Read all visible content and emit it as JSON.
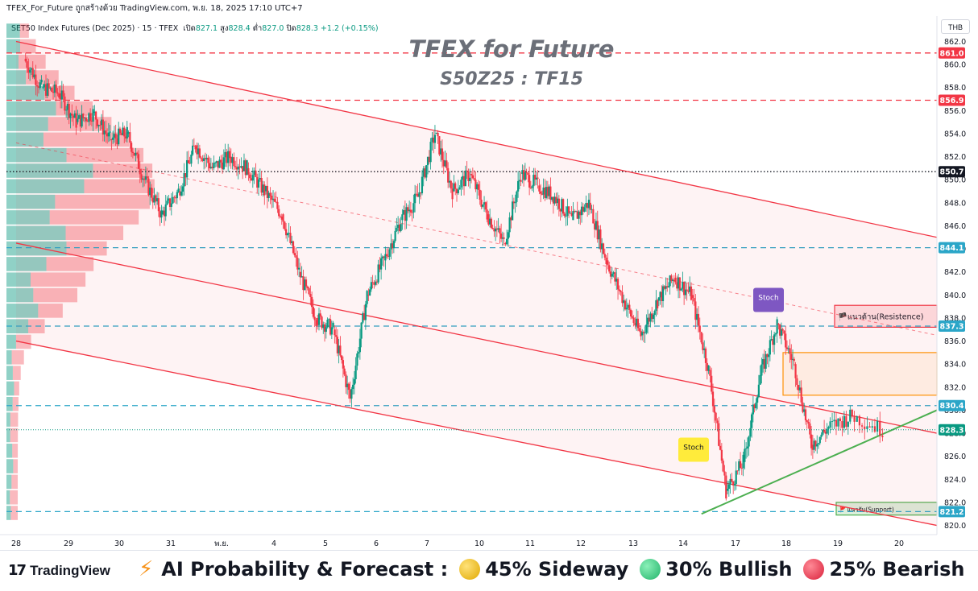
{
  "header": {
    "top_text": "TFEX_For_Future ถูกสร้างด้วย TradingView.com, พ.ย. 18, 2025 17:10 UTC+7",
    "symbol": "SET50 Index Futures (Dec 2025) · 15 · TFEX",
    "open_label": "เปิด",
    "open": "827.1",
    "high_label": "สูง",
    "high": "828.4",
    "low_label": "ต่ำ",
    "low": "827.0",
    "close_label": "ปิด",
    "close": "828.3",
    "change": "+1.2 (+0.15%)",
    "currency": "THB"
  },
  "footer": {
    "brand": "TradingView",
    "forecast_label": "AI Probability & Forecast :",
    "sideway": "45% Sideway",
    "bullish": "30% Bullish",
    "bearish": "25% Bearish"
  },
  "colors": {
    "bull": "#089981",
    "bear": "#f23645",
    "hline_red": "#f23645",
    "hline_blue": "#2ba6c8",
    "channel": "#f23645",
    "trend": "#4caf50",
    "zone_orange": "#ff9800",
    "stoch_purple": "#7e57c2",
    "stoch_yellow": "#ffeb3b"
  },
  "chart_data": {
    "type": "candlestick",
    "title": "TFEX for Future",
    "subtitle": "S50Z25 : TF15",
    "y_range": [
      819.2,
      864.2
    ],
    "y_ticks": [
      820,
      822,
      824,
      826,
      828,
      830,
      832,
      834,
      836,
      838,
      840,
      842,
      844,
      846,
      848,
      850,
      852,
      854,
      856,
      858,
      860,
      862
    ],
    "x_ticks": [
      "28",
      "29",
      "30",
      "31",
      "พ.ย.",
      "4",
      "5",
      "6",
      "7",
      "10",
      "11",
      "12",
      "13",
      "14",
      "17",
      "18",
      "19",
      "20"
    ],
    "price_tags": [
      {
        "value": "861.0",
        "price": 861.0,
        "color": "#f23645"
      },
      {
        "value": "856.9",
        "price": 856.9,
        "color": "#f23645"
      },
      {
        "value": "850.7",
        "price": 850.7,
        "color": "#131722"
      },
      {
        "value": "844.1",
        "price": 844.1,
        "color": "#2ba6c8"
      },
      {
        "value": "837.3",
        "price": 837.3,
        "color": "#2ba6c8"
      },
      {
        "value": "830.4",
        "price": 830.4,
        "color": "#2ba6c8"
      },
      {
        "value": "828.3",
        "price": 828.3,
        "color": "#089981"
      },
      {
        "value": "821.2",
        "price": 821.2,
        "color": "#2ba6c8"
      }
    ],
    "horizontal_levels": [
      {
        "price": 861.0,
        "style": "dashed",
        "color": "#f23645"
      },
      {
        "price": 856.9,
        "style": "dashed",
        "color": "#f23645"
      },
      {
        "price": 850.7,
        "style": "dotted",
        "color": "#131722"
      },
      {
        "price": 844.1,
        "style": "dashed",
        "color": "#2ba6c8"
      },
      {
        "price": 837.3,
        "style": "dashed",
        "color": "#2ba6c8"
      },
      {
        "price": 830.4,
        "style": "dashed",
        "color": "#2ba6c8"
      },
      {
        "price": 821.2,
        "style": "dashed",
        "color": "#2ba6c8"
      }
    ],
    "zones": [
      {
        "label": "🏴แนวต้าน(Resistence)",
        "top": 839.1,
        "bottom": 837.2,
        "border": "#f23645",
        "fill": "rgba(242,54,69,0.15)"
      },
      {
        "label": "",
        "top": 835.0,
        "bottom": 831.3,
        "border": "#ff9800",
        "fill": "rgba(255,152,0,0.08)"
      },
      {
        "label": "🚩แนวรับ(Support)",
        "top": 822.0,
        "bottom": 820.9,
        "border": "#4caf50",
        "fill": "rgba(76,175,80,0.2)"
      }
    ],
    "annotations": [
      {
        "label": "Stoch",
        "time": "18",
        "price": 839.5,
        "color": "#7e57c2"
      },
      {
        "label": "Stoch",
        "time": "14",
        "price": 826.5,
        "color": "#ffeb3b"
      }
    ],
    "series": [
      {
        "name": "",
        "points": [
          [
            "28",
            860.5
          ],
          [
            "28",
            858.0
          ],
          [
            "28",
            857.5
          ],
          [
            "29",
            855.0
          ],
          [
            "29",
            855.8
          ],
          [
            "29",
            853.5
          ],
          [
            "30",
            854.0
          ],
          [
            "30",
            850.0
          ],
          [
            "30",
            847.0
          ],
          [
            "31",
            849.0
          ],
          [
            "31",
            853.0
          ],
          [
            "31",
            851.0
          ],
          [
            "พ.ย.",
            852.0
          ],
          [
            "พ.ย.",
            851.0
          ],
          [
            "พ.ย.",
            849.0
          ],
          [
            "4",
            847.0
          ],
          [
            "4",
            842.0
          ],
          [
            "4",
            838.0
          ],
          [
            "5",
            837.0
          ],
          [
            "5",
            831.0
          ],
          [
            "5",
            840.0
          ],
          [
            "6",
            843.0
          ],
          [
            "6",
            846.5
          ],
          [
            "6",
            848.5
          ],
          [
            "7",
            854.0
          ],
          [
            "7",
            849.0
          ],
          [
            "7",
            850.5
          ],
          [
            "10",
            847.0
          ],
          [
            "10",
            844.5
          ],
          [
            "10",
            850.5
          ],
          [
            "11",
            849.5
          ],
          [
            "11",
            848.5
          ],
          [
            "11",
            846.5
          ],
          [
            "12",
            848.0
          ],
          [
            "12",
            843.0
          ],
          [
            "12",
            839.5
          ],
          [
            "13",
            836.5
          ],
          [
            "13",
            839.5
          ],
          [
            "13",
            841.5
          ],
          [
            "14",
            840.0
          ],
          [
            "14",
            833.5
          ],
          [
            "14",
            823.0
          ],
          [
            "17",
            825.5
          ],
          [
            "17",
            833.0
          ],
          [
            "17",
            837.5
          ],
          [
            "18",
            834.0
          ],
          [
            "18",
            827.0
          ],
          [
            "18",
            828.5
          ],
          [
            "19",
            829.5
          ],
          [
            "19",
            828.3
          ]
        ]
      }
    ],
    "channel_lines": [
      {
        "from": [
          "28",
          862.0
        ],
        "to": [
          "20",
          845.0
        ]
      },
      {
        "from": [
          "28",
          844.5
        ],
        "to": [
          "20",
          828.0
        ]
      },
      {
        "from": [
          "28",
          836.0
        ],
        "to": [
          "20",
          820.0
        ]
      }
    ],
    "trend_line": {
      "from": [
        "14",
        821.0
      ],
      "to": [
        "20",
        830.0
      ]
    }
  }
}
